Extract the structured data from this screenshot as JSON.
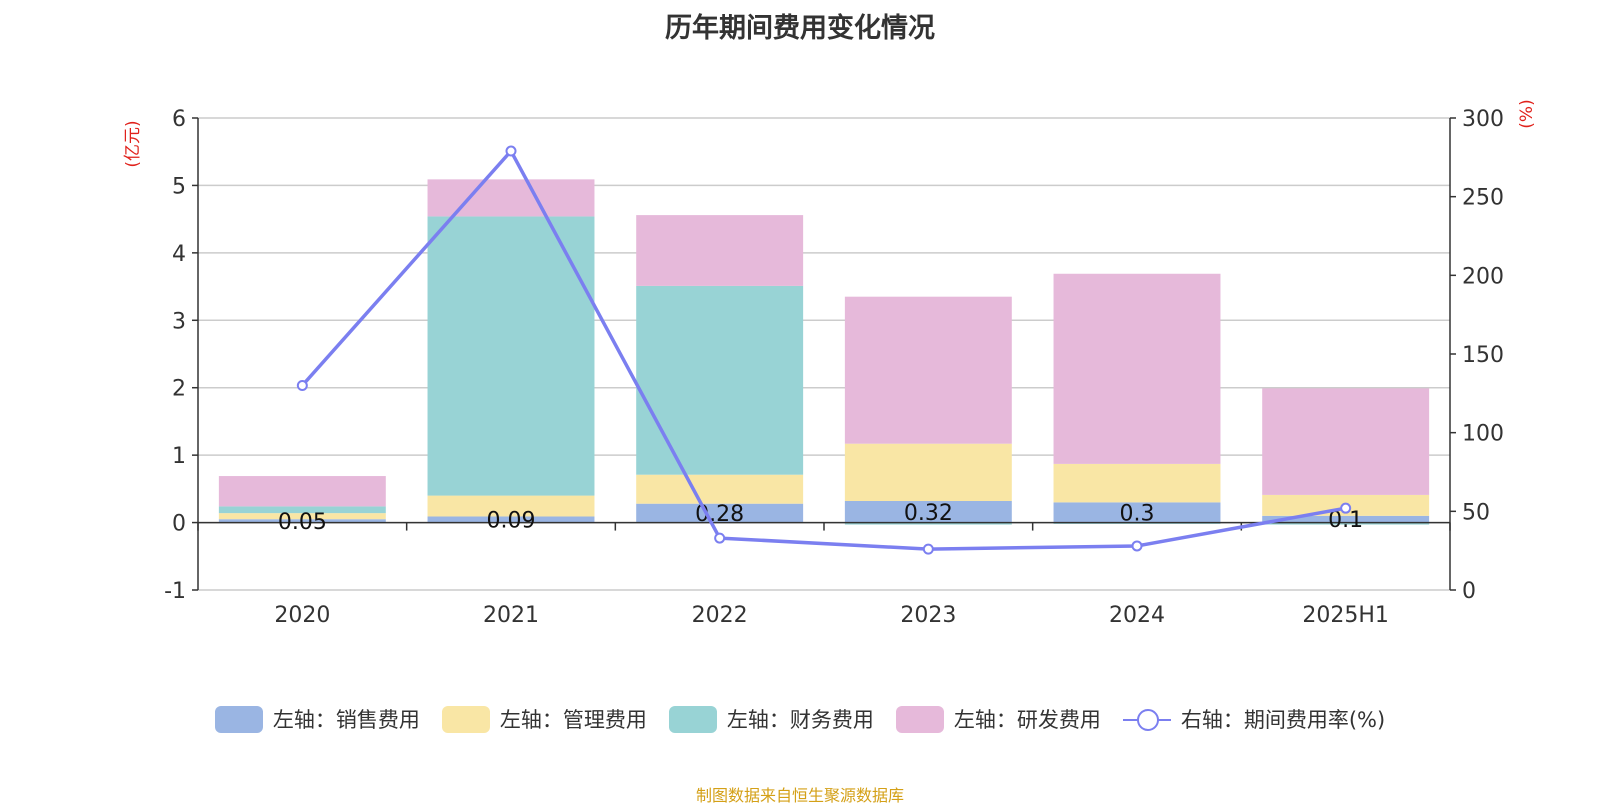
{
  "title": "历年期间费用变化情况",
  "source_note": "制图数据来自恒生聚源数据库",
  "colors": {
    "sales": "#9ab5e3",
    "admin": "#f9e6a5",
    "finance": "#98d3d5",
    "rnd": "#e6b9da",
    "rate_line": "#7b7ff0",
    "unit_label": "#e0211b"
  },
  "chart_data": {
    "type": "bar",
    "stacked": true,
    "categories": [
      "2020",
      "2021",
      "2022",
      "2023",
      "2024",
      "2025H1"
    ],
    "left_axis": {
      "unit": "(亿元)",
      "ylim": [
        -1,
        6
      ],
      "ticks": [
        -1,
        0,
        1,
        2,
        3,
        4,
        5,
        6
      ]
    },
    "right_axis": {
      "unit": "(%)",
      "ylim": [
        0,
        300
      ],
      "ticks": [
        0,
        50,
        100,
        150,
        200,
        250,
        300
      ]
    },
    "series": [
      {
        "key": "sales",
        "name": "左轴：销售费用",
        "axis": "left",
        "values": [
          0.05,
          0.09,
          0.28,
          0.32,
          0.3,
          0.1
        ]
      },
      {
        "key": "admin",
        "name": "左轴：管理费用",
        "axis": "left",
        "values": [
          0.09,
          0.31,
          0.43,
          0.85,
          0.57,
          0.31
        ]
      },
      {
        "key": "finance",
        "name": "左轴：财务费用",
        "axis": "left",
        "values": [
          0.1,
          4.14,
          2.8,
          -0.03,
          -0.02,
          -0.03
        ]
      },
      {
        "key": "rnd",
        "name": "左轴：研发费用",
        "axis": "left",
        "values": [
          0.45,
          0.55,
          1.05,
          2.18,
          2.82,
          1.58
        ]
      },
      {
        "key": "rate",
        "name": "右轴：期间费用率(%)",
        "axis": "right",
        "type": "line",
        "values": [
          130,
          279,
          33,
          26,
          28,
          52
        ]
      }
    ],
    "data_labels": [
      "0.05",
      "0.09",
      "0.28",
      "0.32",
      "0.3",
      "0.1"
    ]
  }
}
